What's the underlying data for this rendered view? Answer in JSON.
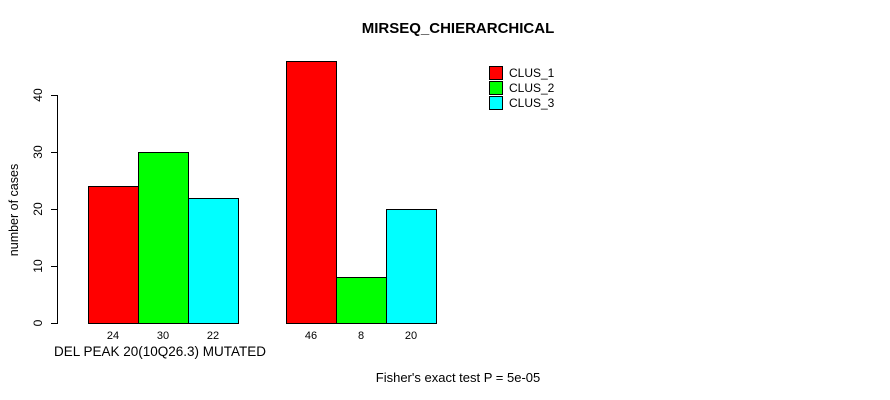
{
  "title": "MIRSEQ_CHIERARCHICAL",
  "footer": {
    "text": "Fisher's exact test P = 5e-05"
  },
  "legend": {
    "items": [
      {
        "label": "CLUS_1",
        "color": "#ff0000"
      },
      {
        "label": "CLUS_2",
        "color": "#00ff00"
      },
      {
        "label": "CLUS_3",
        "color": "#00ffff"
      }
    ]
  },
  "y_axis": {
    "label": "number of cases"
  },
  "x_axis": {
    "group_labels": [
      "DEL PEAK 20(10Q26.3) MUTATED",
      ""
    ]
  },
  "chart_data": {
    "type": "bar",
    "title": "MIRSEQ_CHIERARCHICAL",
    "xlabel": "DEL PEAK 20(10Q26.3) MUTATED",
    "ylabel": "number of cases",
    "ylim": [
      0,
      46
    ],
    "yticks": [
      0,
      10,
      20,
      30,
      40
    ],
    "grid": false,
    "legend_position": "top-right",
    "categories": [
      "DEL PEAK 20(10Q26.3) MUTATED",
      ""
    ],
    "series": [
      {
        "name": "CLUS_1",
        "color": "#ff0000",
        "values": [
          24,
          46
        ]
      },
      {
        "name": "CLUS_2",
        "color": "#00ff00",
        "values": [
          30,
          8
        ]
      },
      {
        "name": "CLUS_3",
        "color": "#00ffff",
        "values": [
          22,
          20
        ]
      }
    ],
    "bar_value_labels": [
      [
        24,
        30,
        22
      ],
      [
        46,
        8,
        20
      ]
    ],
    "annotation": "Fisher's exact test P = 5e-05"
  }
}
